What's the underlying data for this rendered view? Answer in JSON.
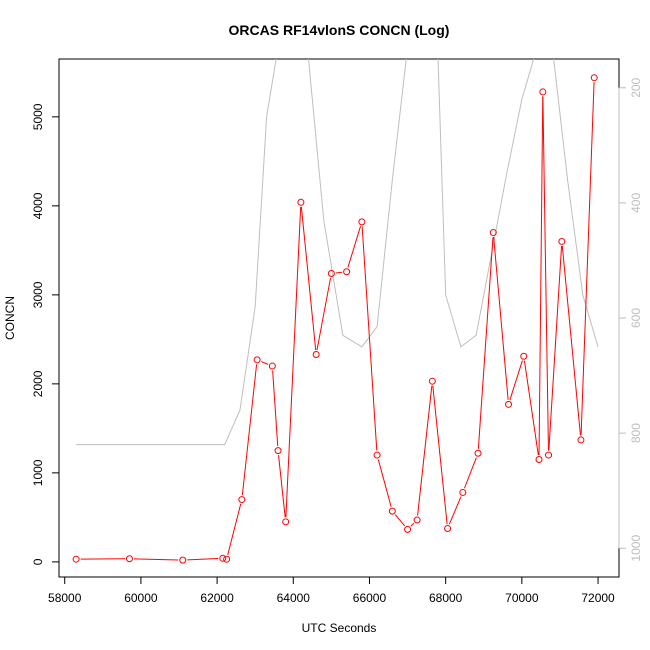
{
  "chart_data": {
    "type": "line",
    "title": "ORCAS RF14vlonS CONCN (Log)",
    "xlabel": "UTC Seconds",
    "ylabel": "CONCN",
    "xlim": [
      57850,
      72550
    ],
    "ylim": [
      -170,
      5650
    ],
    "y2lim": [
      1050,
      150
    ],
    "x_ticks": [
      58000,
      60000,
      62000,
      64000,
      66000,
      68000,
      70000,
      72000
    ],
    "y_ticks": [
      0,
      1000,
      2000,
      3000,
      4000,
      5000
    ],
    "y2_ticks": [
      200,
      400,
      600,
      800,
      1000
    ],
    "grid": false,
    "legend": "none",
    "colors": {
      "concn": "#ff0000",
      "altitude": "#bebebe",
      "axis": "#000000",
      "right_axis": "#bebebe"
    },
    "series": [
      {
        "values_x": [
          58300,
          59700,
          61100,
          62150,
          62250,
          62650,
          63050,
          63450,
          63600,
          63800,
          64200,
          64600,
          65000,
          65400,
          65800,
          66200,
          66600,
          67000,
          67250,
          67650,
          68050,
          68450,
          68850,
          69250,
          69650,
          70050,
          70450,
          70550,
          70700,
          71050,
          71550,
          71900
        ],
        "values_y": [
          30,
          35,
          20,
          40,
          30,
          700,
          2270,
          2200,
          1250,
          450,
          4040,
          2330,
          3240,
          3260,
          3820,
          1200,
          570,
          365,
          470,
          2030,
          375,
          780,
          1220,
          3700,
          1770,
          2310,
          1150,
          5280,
          1200,
          3600,
          1370,
          5440
        ]
      },
      {
        "values_x": [
          58300,
          62200,
          62600,
          63000,
          63300,
          63600,
          64000,
          64400,
          64800,
          65300,
          65800,
          66200,
          66600,
          67000,
          67400,
          67800,
          68000,
          68400,
          68800,
          69200,
          69600,
          70000,
          70400,
          70800,
          71200,
          71600,
          72000
        ],
        "values_y": [
          820,
          820,
          760,
          580,
          250,
          130,
          130,
          150,
          430,
          630,
          650,
          615,
          360,
          130,
          130,
          150,
          560,
          650,
          630,
          490,
          350,
          220,
          130,
          130,
          360,
          560,
          650
        ]
      }
    ]
  }
}
